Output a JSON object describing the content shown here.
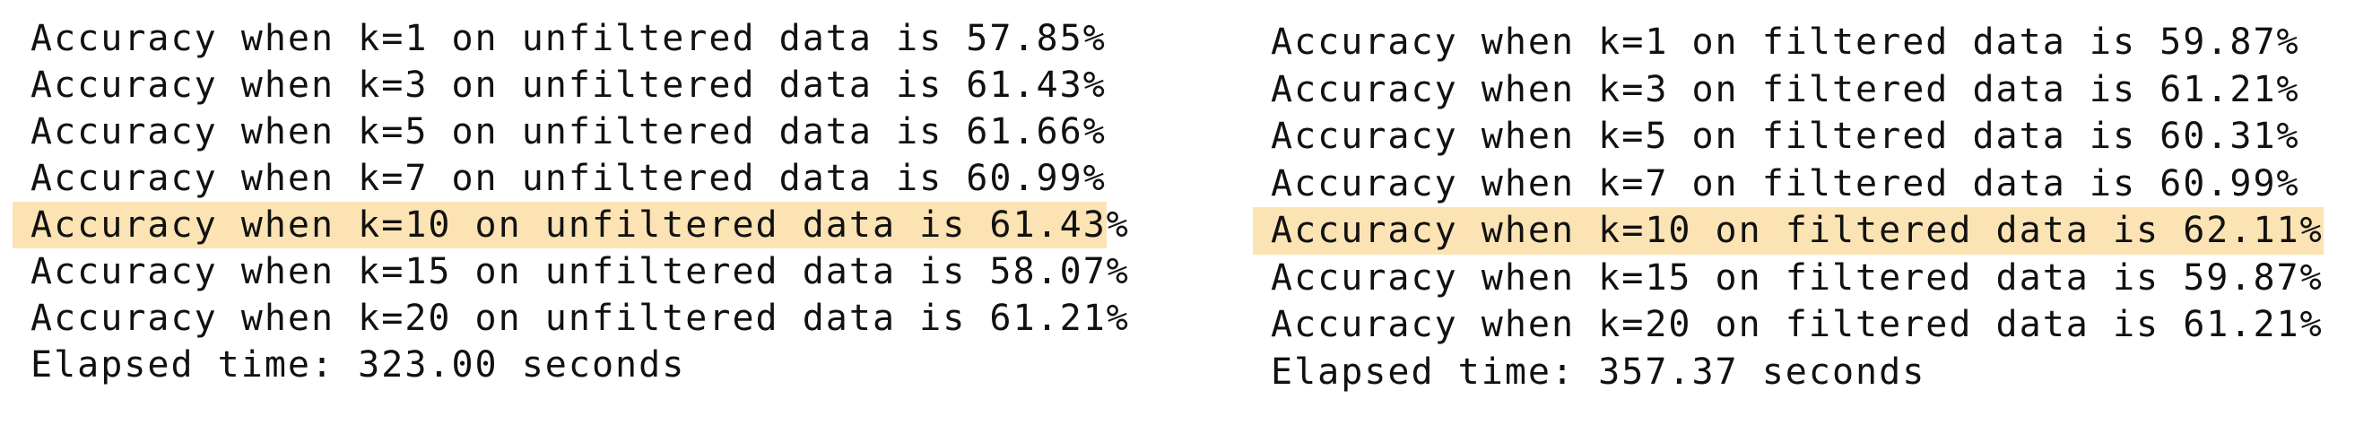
{
  "highlight_color": "#fbe3b3",
  "left_output": {
    "lines": [
      "Accuracy when k=1 on unfiltered data is 57.85%",
      "Accuracy when k=3 on unfiltered data is 61.43%",
      "Accuracy when k=5 on unfiltered data is 61.66%",
      "Accuracy when k=7 on unfiltered data is 60.99%",
      "Accuracy when k=10 on unfiltered data is 61.43%",
      "Accuracy when k=15 on unfiltered data is 58.07%",
      "Accuracy when k=20 on unfiltered data is 61.21%"
    ],
    "elapsed": "Elapsed time: 323.00 seconds",
    "highlighted_k": "k=10"
  },
  "right_output": {
    "lines": [
      "Accuracy when k=1 on filtered data is 59.87%",
      "Accuracy when k=3 on filtered data is 61.21%",
      "Accuracy when k=5 on filtered data is 60.31%",
      "Accuracy when k=7 on filtered data is 60.99%",
      "Accuracy when k=10 on filtered data is 62.11%",
      "Accuracy when k=15 on filtered data is 59.87%",
      "Accuracy when k=20 on filtered data is 61.21%"
    ],
    "elapsed": "Elapsed time: 357.37 seconds",
    "highlighted_k": "k=10"
  }
}
